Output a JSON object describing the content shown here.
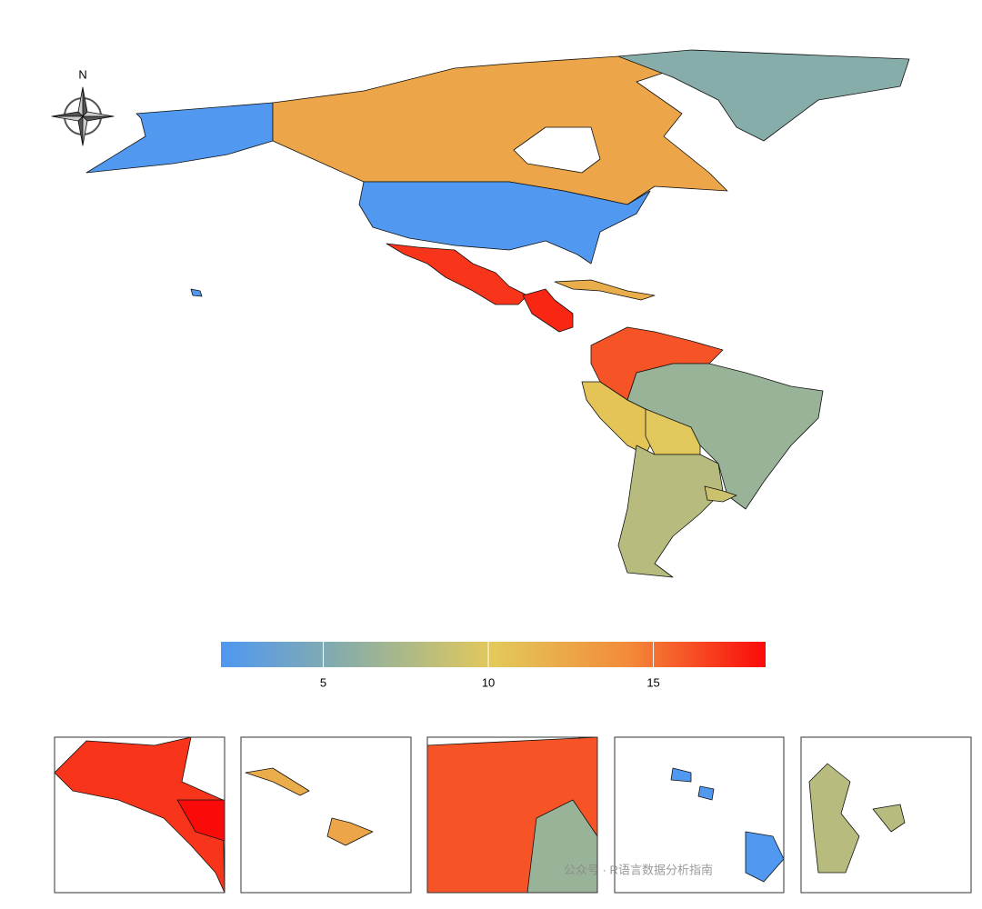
{
  "map": {
    "north_label": "N",
    "colorbar": {
      "lim": [
        1.9,
        18.4
      ],
      "ticks": [
        5,
        10,
        15
      ],
      "colors": [
        "#4f97f2",
        "#8fb0a0",
        "#e3c95a",
        "#f38a3a",
        "#fb0a0a"
      ]
    },
    "region_values": [
      2,
      12.5,
      2,
      5.5,
      17,
      17.5,
      12,
      16,
      10.5,
      6.5,
      10,
      8,
      9,
      2,
      17,
      18.5,
      12,
      12.5,
      16,
      6.5,
      2,
      8
    ]
  },
  "watermark": "公众号 · R语言数据分析指南"
}
